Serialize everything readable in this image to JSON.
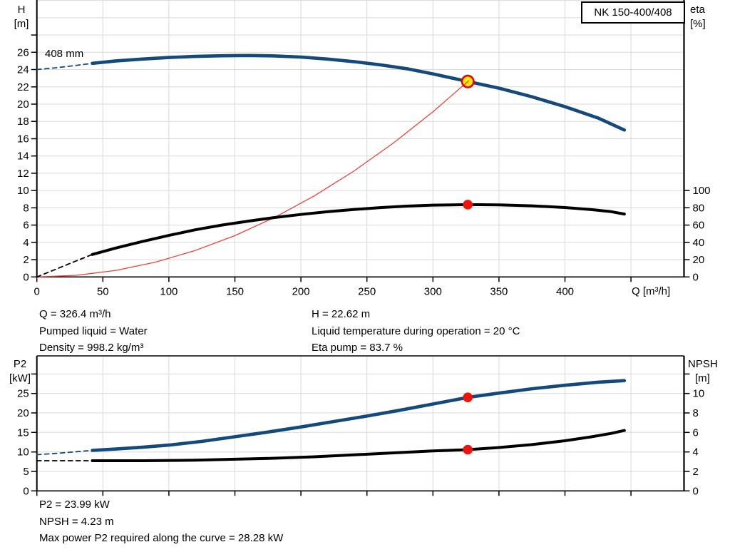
{
  "colors": {
    "grid": "#d9d9d9",
    "axis": "#000000",
    "curve_blue": "#14497b",
    "curve_black": "#000000",
    "system_red": "#f04038",
    "dot_red": "#ed1509",
    "op_fill": "#ffe60a",
    "op_ring": "#e60000"
  },
  "info_top": {
    "left": [
      "Q = 326.4 m³/h",
      "Pumped liquid = Water",
      "Density = 998.2 kg/m³"
    ],
    "right": [
      "H = 22.62 m",
      "Liquid temperature during operation = 20 °C",
      "Eta pump = 83.7 %"
    ]
  },
  "info_bottom": [
    "P2 = 23.99 kW",
    "NPSH = 4.23 m",
    "Max power P2 required along the curve = 28.28 kW"
  ],
  "chart_data": [
    {
      "type": "line",
      "name": "H-Q performance curve with efficiency",
      "title": "NK 150-400/408",
      "curve_label": "408 mm",
      "x_axis": {
        "label": "Q [m³/h]",
        "min": 0,
        "max": 490,
        "tick_values": [
          0,
          50,
          100,
          150,
          200,
          250,
          300,
          350,
          400,
          450
        ],
        "label_values": [
          0,
          50,
          100,
          150,
          200,
          250,
          300,
          350,
          400
        ],
        "grid_values": [
          50,
          100,
          150,
          200,
          250,
          300,
          350,
          400,
          450
        ]
      },
      "y_left": {
        "label_lines": [
          "H",
          "[m]"
        ],
        "min": 0,
        "max": 32,
        "tick_values": [
          0,
          2,
          4,
          6,
          8,
          10,
          12,
          14,
          16,
          18,
          20,
          22,
          24,
          26
        ],
        "unlabeled_tick_values": [
          28
        ],
        "grid_values": [
          2,
          4,
          6,
          8,
          10,
          12,
          14,
          16,
          18,
          20,
          22,
          24,
          26,
          28,
          30,
          32
        ]
      },
      "y_right": {
        "label_lines": [
          "eta",
          "[%]"
        ],
        "min": 0,
        "max": 100,
        "tick_values": [
          0,
          20,
          40,
          60,
          80,
          100
        ],
        "unlabeled_tick_values": []
      },
      "series": [
        {
          "name": "system-curve",
          "axis": "left",
          "color": "#f04038",
          "width": 1.3,
          "points": [
            [
              0,
              0
            ],
            [
              30,
              0.19
            ],
            [
              60,
              0.76
            ],
            [
              90,
              1.72
            ],
            [
              120,
              3.06
            ],
            [
              150,
              4.78
            ],
            [
              180,
              6.88
            ],
            [
              210,
              9.37
            ],
            [
              240,
              12.24
            ],
            [
              270,
              15.49
            ],
            [
              300,
              19.12
            ],
            [
              326.4,
              22.62
            ]
          ]
        },
        {
          "name": "efficiency-curve",
          "axis": "right",
          "color": "#000000",
          "width": 4,
          "dashed_points": [
            [
              0,
              0
            ],
            [
              14,
              8.7
            ],
            [
              28,
              17.4
            ],
            [
              42,
              26
            ]
          ],
          "points": [
            [
              42,
              26
            ],
            [
              60,
              33.5
            ],
            [
              80,
              41
            ],
            [
              100,
              48
            ],
            [
              120,
              54.5
            ],
            [
              140,
              60
            ],
            [
              160,
              64.5
            ],
            [
              180,
              68.7
            ],
            [
              200,
              72.3
            ],
            [
              220,
              75.4
            ],
            [
              240,
              78
            ],
            [
              260,
              80.2
            ],
            [
              280,
              81.9
            ],
            [
              300,
              83.1
            ],
            [
              326.4,
              83.7
            ],
            [
              350,
              83.4
            ],
            [
              375,
              82.3
            ],
            [
              400,
              80.3
            ],
            [
              420,
              77.9
            ],
            [
              435,
              75.5
            ],
            [
              445,
              72.8
            ]
          ]
        },
        {
          "name": "head-curve-408mm",
          "axis": "left",
          "color": "#14497b",
          "width": 4.6,
          "dashed_points": [
            [
              0,
              24
            ],
            [
              14,
              24.2
            ],
            [
              28,
              24.45
            ],
            [
              42,
              24.72
            ]
          ],
          "points": [
            [
              42,
              24.72
            ],
            [
              60,
              25
            ],
            [
              80,
              25.22
            ],
            [
              100,
              25.4
            ],
            [
              120,
              25.52
            ],
            [
              140,
              25.6
            ],
            [
              160,
              25.63
            ],
            [
              180,
              25.58
            ],
            [
              200,
              25.45
            ],
            [
              220,
              25.22
            ],
            [
              240,
              24.92
            ],
            [
              260,
              24.55
            ],
            [
              280,
              24.1
            ],
            [
              300,
              23.5
            ],
            [
              326.4,
              22.62
            ],
            [
              350,
              21.85
            ],
            [
              375,
              20.85
            ],
            [
              400,
              19.7
            ],
            [
              425,
              18.4
            ],
            [
              445,
              17
            ]
          ]
        }
      ],
      "markers": [
        {
          "name": "duty-point",
          "axis": "left",
          "q": 326.4,
          "value": 22.62,
          "type": "op"
        },
        {
          "name": "efficiency-point",
          "axis": "right",
          "q": 326.4,
          "value": 83.7,
          "type": "dot"
        }
      ]
    },
    {
      "type": "line",
      "name": "P2 and NPSH curves",
      "x_axis": {
        "label": "",
        "min": 0,
        "max": 490,
        "tick_values": [
          0,
          50,
          100,
          150,
          200,
          250,
          300,
          350,
          400,
          450
        ],
        "label_values": [],
        "grid_values": [
          50,
          100,
          150,
          200,
          250,
          300,
          350,
          400,
          450
        ]
      },
      "y_left": {
        "label_lines": [
          "P2",
          "[kW]"
        ],
        "min": 0,
        "max": 34,
        "tick_values": [
          0,
          5,
          10,
          15,
          20,
          25
        ],
        "unlabeled_tick_values": [
          30
        ],
        "grid_values": [
          5,
          10,
          15,
          20,
          25,
          30
        ]
      },
      "y_right": {
        "label_lines": [
          "NPSH",
          "[m]"
        ],
        "min": 0,
        "max": 13.6,
        "tick_values": [
          0,
          2,
          4,
          6,
          8,
          10
        ],
        "unlabeled_tick_values": [
          12
        ]
      },
      "series": [
        {
          "name": "npsh-curve",
          "axis": "right",
          "color": "#000000",
          "width": 4,
          "dashed_points": [
            [
              0,
              3.1
            ],
            [
              20,
              3.1
            ],
            [
              42,
              3.1
            ]
          ],
          "points": [
            [
              42,
              3.1
            ],
            [
              80,
              3.1
            ],
            [
              120,
              3.15
            ],
            [
              150,
              3.25
            ],
            [
              180,
              3.35
            ],
            [
              210,
              3.5
            ],
            [
              240,
              3.7
            ],
            [
              270,
              3.9
            ],
            [
              300,
              4.1
            ],
            [
              326.4,
              4.23
            ],
            [
              350,
              4.45
            ],
            [
              375,
              4.75
            ],
            [
              400,
              5.15
            ],
            [
              420,
              5.55
            ],
            [
              435,
              5.9
            ],
            [
              445,
              6.2
            ]
          ]
        },
        {
          "name": "p2-curve",
          "axis": "left",
          "color": "#14497b",
          "width": 4.6,
          "dashed_points": [
            [
              0,
              9.3
            ],
            [
              14,
              9.6
            ],
            [
              28,
              10
            ],
            [
              42,
              10.4
            ]
          ],
          "points": [
            [
              42,
              10.4
            ],
            [
              60,
              10.75
            ],
            [
              80,
              11.2
            ],
            [
              100,
              11.75
            ],
            [
              125,
              12.7
            ],
            [
              150,
              13.9
            ],
            [
              175,
              15.1
            ],
            [
              200,
              16.4
            ],
            [
              225,
              17.8
            ],
            [
              250,
              19.2
            ],
            [
              275,
              20.7
            ],
            [
              300,
              22.3
            ],
            [
              326.4,
              23.99
            ],
            [
              350,
              25.1
            ],
            [
              375,
              26.2
            ],
            [
              400,
              27.1
            ],
            [
              425,
              27.9
            ],
            [
              445,
              28.3
            ]
          ]
        }
      ],
      "markers": [
        {
          "name": "p2-point",
          "axis": "left",
          "q": 326.4,
          "value": 23.99,
          "type": "dot"
        },
        {
          "name": "npsh-point",
          "axis": "right",
          "q": 326.4,
          "value": 4.23,
          "type": "dot"
        }
      ]
    }
  ]
}
